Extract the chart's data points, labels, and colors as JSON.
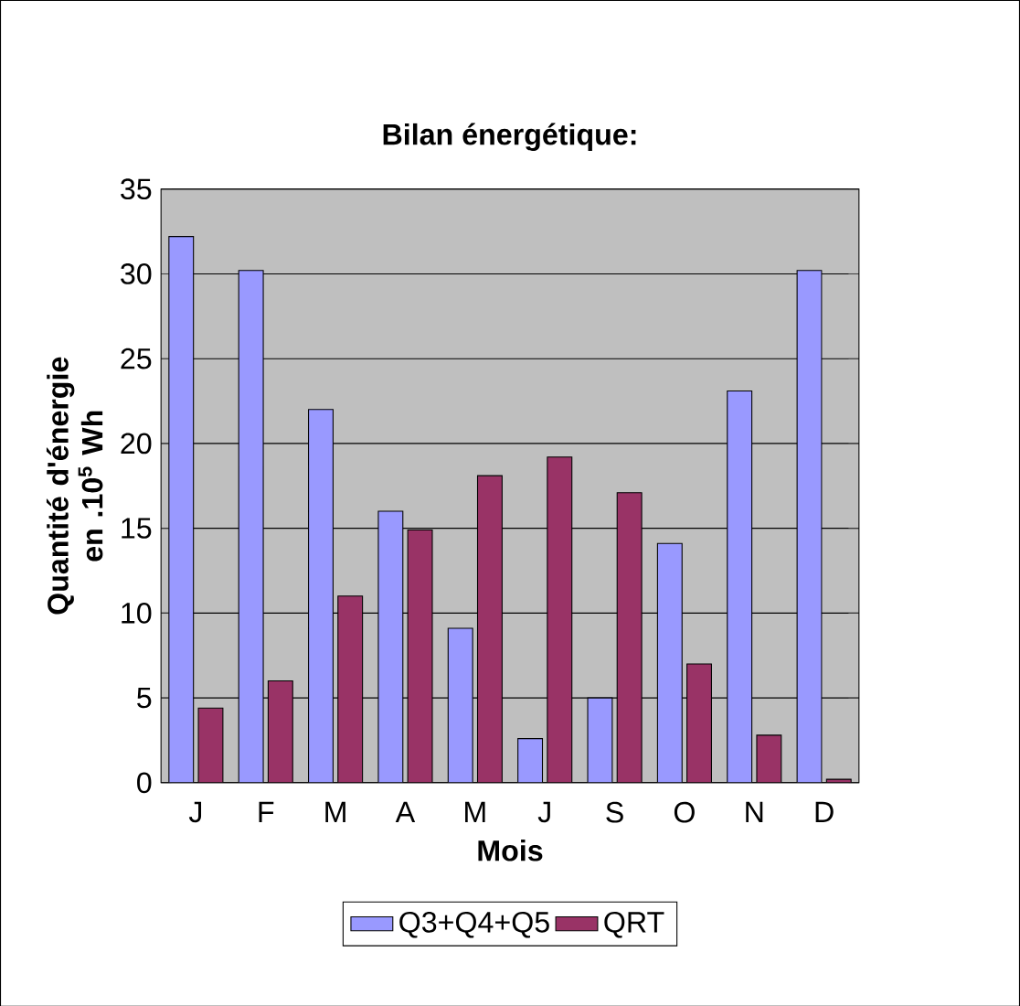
{
  "chart_data": {
    "type": "bar",
    "title": "Bilan énergétique:",
    "xlabel": "Mois",
    "ylabel": "Quantité d'énergie en .10$^{5}$ Wh",
    "categories": [
      "J",
      "F",
      "M",
      "A",
      "M",
      "J",
      "S",
      "O",
      "N",
      "D"
    ],
    "series": [
      {
        "name": "Q3+Q4+Q5",
        "color": "#9999ff",
        "values": [
          32.2,
          30.2,
          22.0,
          16.0,
          9.1,
          2.6,
          5.0,
          14.1,
          23.1,
          30.2
        ]
      },
      {
        "name": "QRT",
        "color": "#993366",
        "values": [
          4.4,
          6.0,
          11.0,
          14.9,
          18.1,
          19.2,
          17.1,
          7.0,
          2.8,
          0.2
        ]
      }
    ],
    "ylim": [
      0,
      35
    ],
    "yticks": [
      0,
      5,
      10,
      15,
      20,
      25,
      30,
      35
    ],
    "grid": "y",
    "legend": "bottom"
  }
}
